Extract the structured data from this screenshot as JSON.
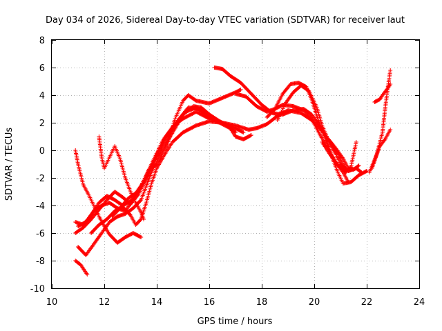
{
  "chart_data": {
    "type": "scatter",
    "title": "Day 034 of 2026, Sidereal Day-to-day VTEC variation (SDTVAR) for receiver laut",
    "xlabel": "GPS time / hours",
    "ylabel": "SDTVAR / TECUs",
    "xlim": [
      10,
      24
    ],
    "ylim": [
      -10,
      8
    ],
    "xticks": [
      10,
      12,
      14,
      16,
      18,
      20,
      22,
      24
    ],
    "yticks": [
      -10,
      -8,
      -6,
      -4,
      -2,
      0,
      2,
      4,
      6,
      8
    ],
    "grid": true,
    "marker": "+",
    "color": "#ff0000",
    "series": [
      {
        "name": "s1",
        "points": [
          [
            10.9,
            -8.0
          ],
          [
            11.1,
            -8.3
          ],
          [
            11.35,
            -9.0
          ]
        ]
      },
      {
        "name": "s2",
        "points": [
          [
            10.9,
            0.0
          ],
          [
            11.0,
            -1.0
          ],
          [
            11.2,
            -2.5
          ],
          [
            11.4,
            -3.2
          ],
          [
            11.6,
            -4.0
          ],
          [
            11.8,
            -4.8
          ],
          [
            12.0,
            -5.5
          ],
          [
            12.2,
            -6.1
          ],
          [
            12.5,
            -6.7
          ],
          [
            12.8,
            -6.3
          ],
          [
            13.1,
            -6.0
          ],
          [
            13.4,
            -6.3
          ]
        ]
      },
      {
        "name": "s3",
        "points": [
          [
            11.0,
            -7.0
          ],
          [
            11.3,
            -7.6
          ],
          [
            11.6,
            -6.8
          ],
          [
            11.9,
            -6.0
          ],
          [
            12.2,
            -5.2
          ],
          [
            12.5,
            -4.8
          ],
          [
            12.8,
            -4.6
          ],
          [
            13.1,
            -4.2
          ],
          [
            13.4,
            -3.6
          ],
          [
            13.6,
            -2.6
          ],
          [
            13.8,
            -1.6
          ],
          [
            14.0,
            -0.8
          ],
          [
            14.3,
            0.3
          ],
          [
            14.7,
            1.6
          ],
          [
            15.0,
            2.6
          ],
          [
            15.4,
            3.2
          ],
          [
            15.7,
            3.1
          ],
          [
            16.0,
            2.6
          ],
          [
            16.4,
            2.1
          ],
          [
            16.7,
            1.8
          ],
          [
            17.0,
            1.3
          ]
        ]
      },
      {
        "name": "s4",
        "points": [
          [
            10.9,
            -6.0
          ],
          [
            11.2,
            -5.6
          ],
          [
            11.5,
            -5.0
          ],
          [
            11.8,
            -4.3
          ],
          [
            12.1,
            -3.6
          ],
          [
            12.4,
            -3.0
          ],
          [
            12.7,
            -3.4
          ],
          [
            13.0,
            -3.9
          ],
          [
            13.3,
            -3.2
          ],
          [
            13.6,
            -2.1
          ],
          [
            13.9,
            -0.9
          ],
          [
            14.2,
            0.2
          ],
          [
            14.5,
            1.3
          ],
          [
            14.9,
            2.4
          ],
          [
            15.2,
            3.1
          ],
          [
            15.6,
            3.0
          ],
          [
            16.0,
            2.4
          ],
          [
            16.4,
            2.0
          ],
          [
            16.8,
            1.6
          ],
          [
            17.0,
            1.0
          ],
          [
            17.3,
            0.8
          ],
          [
            17.6,
            1.1
          ]
        ]
      },
      {
        "name": "s5",
        "points": [
          [
            10.9,
            -5.2
          ],
          [
            11.2,
            -5.4
          ],
          [
            11.5,
            -4.7
          ],
          [
            11.8,
            -3.8
          ],
          [
            12.1,
            -3.3
          ],
          [
            12.4,
            -3.6
          ],
          [
            12.7,
            -4.0
          ],
          [
            13.0,
            -3.7
          ],
          [
            13.3,
            -3.0
          ],
          [
            13.6,
            -1.8
          ],
          [
            13.9,
            -0.6
          ],
          [
            14.2,
            0.6
          ],
          [
            14.6,
            1.7
          ],
          [
            15.0,
            2.3
          ],
          [
            15.5,
            2.8
          ],
          [
            16.0,
            2.3
          ],
          [
            16.5,
            2.0
          ],
          [
            17.0,
            1.6
          ],
          [
            17.3,
            1.3
          ]
        ]
      },
      {
        "name": "s6",
        "points": [
          [
            11.0,
            -5.5
          ],
          [
            11.3,
            -5.2
          ],
          [
            11.6,
            -4.4
          ],
          [
            11.9,
            -4.0
          ],
          [
            12.2,
            -3.8
          ],
          [
            12.5,
            -4.2
          ],
          [
            12.8,
            -4.4
          ],
          [
            13.1,
            -3.6
          ],
          [
            13.4,
            -2.6
          ],
          [
            13.7,
            -1.5
          ],
          [
            14.0,
            -0.3
          ],
          [
            14.3,
            0.9
          ],
          [
            14.7,
            1.9
          ],
          [
            15.1,
            2.8
          ],
          [
            15.5,
            3.1
          ],
          [
            15.9,
            2.6
          ],
          [
            16.3,
            2.2
          ]
        ]
      },
      {
        "name": "s7",
        "points": [
          [
            11.8,
            1.0
          ],
          [
            11.9,
            -0.5
          ],
          [
            12.0,
            -1.3
          ],
          [
            12.2,
            -0.5
          ],
          [
            12.4,
            0.3
          ],
          [
            12.6,
            -0.6
          ],
          [
            12.8,
            -2.0
          ],
          [
            13.0,
            -3.0
          ],
          [
            13.2,
            -3.8
          ],
          [
            13.4,
            -4.5
          ],
          [
            13.5,
            -5.0
          ]
        ]
      },
      {
        "name": "s8",
        "points": [
          [
            11.5,
            -6.0
          ],
          [
            11.8,
            -5.4
          ],
          [
            12.1,
            -5.0
          ],
          [
            12.4,
            -4.4
          ],
          [
            12.7,
            -4.1
          ],
          [
            13.0,
            -4.7
          ],
          [
            13.2,
            -5.4
          ],
          [
            13.4,
            -5.0
          ],
          [
            13.6,
            -3.8
          ],
          [
            13.8,
            -2.4
          ],
          [
            14.0,
            -1.3
          ],
          [
            14.3,
            -0.3
          ],
          [
            14.6,
            0.6
          ],
          [
            15.0,
            1.3
          ],
          [
            15.5,
            1.8
          ],
          [
            16.0,
            2.1
          ],
          [
            16.5,
            2.0
          ],
          [
            17.0,
            1.8
          ],
          [
            17.5,
            1.5
          ],
          [
            17.8,
            1.6
          ],
          [
            18.2,
            1.9
          ],
          [
            18.6,
            2.5
          ],
          [
            19.0,
            2.9
          ],
          [
            19.5,
            2.7
          ],
          [
            19.9,
            2.2
          ],
          [
            20.3,
            1.4
          ],
          [
            20.7,
            0.4
          ],
          [
            21.0,
            -0.6
          ],
          [
            21.2,
            -1.4
          ]
        ]
      },
      {
        "name": "s9",
        "points": [
          [
            12.3,
            -4.8
          ],
          [
            12.6,
            -4.2
          ],
          [
            12.9,
            -3.5
          ],
          [
            13.2,
            -3.1
          ],
          [
            13.5,
            -2.3
          ],
          [
            13.7,
            -1.4
          ],
          [
            14.0,
            -1.0
          ],
          [
            14.4,
            0.4
          ],
          [
            14.7,
            2.3
          ],
          [
            15.0,
            3.6
          ],
          [
            15.2,
            4.0
          ],
          [
            15.5,
            3.6
          ],
          [
            16.0,
            3.4
          ],
          [
            16.5,
            3.8
          ],
          [
            17.0,
            4.2
          ],
          [
            17.2,
            4.4
          ]
        ]
      },
      {
        "name": "s10",
        "points": [
          [
            16.2,
            6.0
          ],
          [
            16.5,
            5.9
          ],
          [
            16.8,
            5.4
          ],
          [
            17.2,
            4.9
          ],
          [
            17.6,
            4.1
          ],
          [
            18.0,
            3.3
          ],
          [
            18.4,
            2.7
          ],
          [
            18.8,
            2.6
          ],
          [
            19.2,
            2.9
          ],
          [
            19.6,
            3.0
          ],
          [
            19.9,
            2.6
          ],
          [
            20.2,
            1.8
          ],
          [
            20.5,
            0.8
          ],
          [
            20.8,
            -0.2
          ],
          [
            21.0,
            -1.0
          ],
          [
            21.3,
            -1.5
          ],
          [
            21.6,
            -1.3
          ],
          [
            21.8,
            -1.6
          ]
        ]
      },
      {
        "name": "s11",
        "points": [
          [
            17.0,
            4.1
          ],
          [
            17.4,
            3.9
          ],
          [
            17.8,
            3.2
          ],
          [
            18.2,
            2.8
          ],
          [
            18.5,
            3.0
          ],
          [
            18.8,
            3.3
          ],
          [
            19.2,
            3.2
          ],
          [
            19.6,
            2.9
          ],
          [
            19.9,
            2.3
          ],
          [
            20.2,
            1.2
          ],
          [
            20.5,
            0.2
          ],
          [
            20.8,
            -0.8
          ],
          [
            21.1,
            -1.6
          ],
          [
            21.3,
            -2.3
          ]
        ]
      },
      {
        "name": "s12",
        "points": [
          [
            18.2,
            2.4
          ],
          [
            18.5,
            3.0
          ],
          [
            18.8,
            4.1
          ],
          [
            19.1,
            4.8
          ],
          [
            19.4,
            4.9
          ],
          [
            19.7,
            4.6
          ],
          [
            19.9,
            3.7
          ],
          [
            20.1,
            2.5
          ],
          [
            20.3,
            1.4
          ],
          [
            20.5,
            0.5
          ],
          [
            20.7,
            -0.6
          ],
          [
            20.9,
            -1.6
          ],
          [
            21.1,
            -2.4
          ],
          [
            21.4,
            -2.3
          ],
          [
            21.7,
            -1.8
          ],
          [
            22.0,
            -1.5
          ]
        ]
      },
      {
        "name": "s13",
        "points": [
          [
            18.6,
            2.2
          ],
          [
            18.9,
            3.4
          ],
          [
            19.2,
            4.2
          ],
          [
            19.5,
            4.7
          ],
          [
            19.8,
            4.3
          ],
          [
            20.1,
            3.1
          ],
          [
            20.3,
            1.8
          ],
          [
            20.5,
            0.9
          ],
          [
            20.8,
            0.2
          ],
          [
            21.1,
            -0.6
          ],
          [
            21.3,
            -1.3
          ],
          [
            21.5,
            -1.4
          ],
          [
            21.7,
            -1.1
          ]
        ]
      },
      {
        "name": "s14",
        "points": [
          [
            20.3,
            0.6
          ],
          [
            20.6,
            -0.3
          ],
          [
            20.9,
            -1.1
          ],
          [
            21.2,
            -1.6
          ],
          [
            21.4,
            -1.2
          ],
          [
            21.6,
            0.6
          ]
        ]
      },
      {
        "name": "s15",
        "points": [
          [
            22.2,
            -1.3
          ],
          [
            22.4,
            -0.2
          ],
          [
            22.6,
            1.3
          ],
          [
            22.7,
            3.0
          ],
          [
            22.8,
            4.5
          ],
          [
            22.9,
            5.8
          ]
        ]
      },
      {
        "name": "s16",
        "points": [
          [
            22.1,
            -1.6
          ],
          [
            22.3,
            -0.7
          ],
          [
            22.5,
            0.3
          ],
          [
            22.7,
            0.8
          ],
          [
            22.9,
            1.5
          ]
        ]
      },
      {
        "name": "s17",
        "points": [
          [
            22.3,
            3.5
          ],
          [
            22.5,
            3.7
          ],
          [
            22.6,
            4.0
          ],
          [
            22.8,
            4.5
          ],
          [
            22.9,
            4.8
          ]
        ]
      }
    ]
  }
}
